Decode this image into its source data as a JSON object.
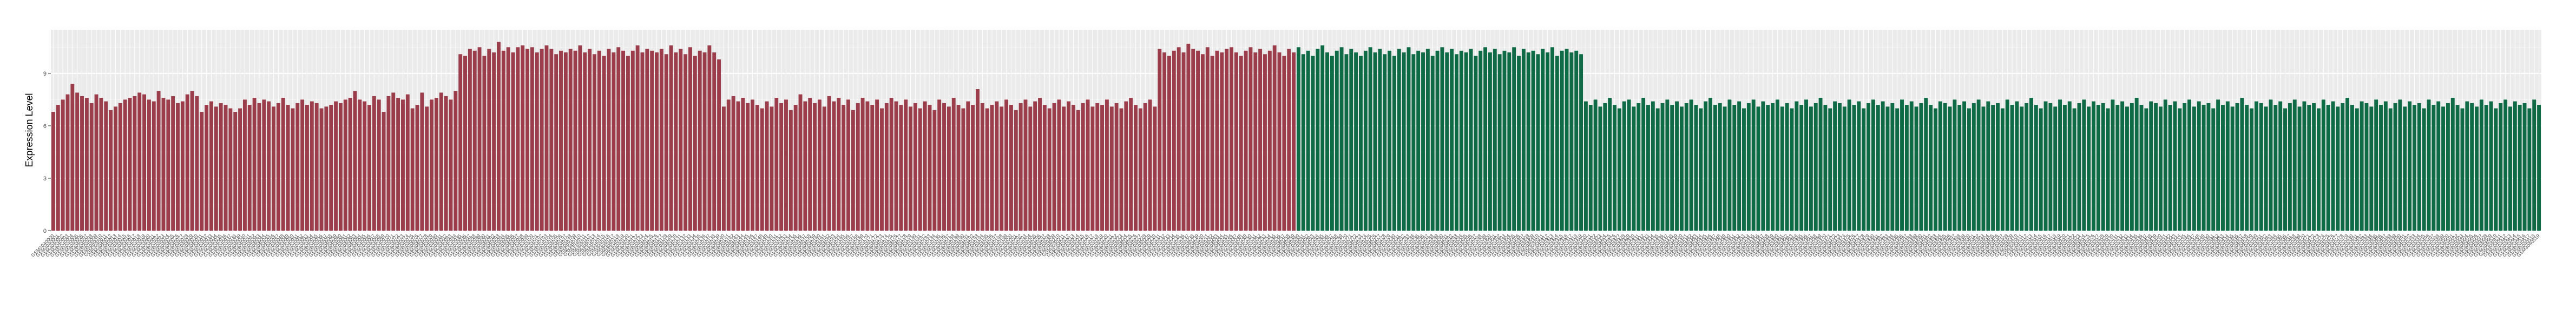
{
  "chart_data": {
    "type": "bar",
    "title": "",
    "xlabel": "",
    "ylabel": "Expression Level",
    "ylim": [
      0,
      11.5
    ],
    "yticks": [
      0,
      3,
      6,
      9
    ],
    "ytick_labels": [
      "0",
      "3",
      "6",
      "9"
    ],
    "grid": true,
    "legend": "none",
    "colors": {
      "group_a": "#9c3d4b",
      "group_b": "#0e6b45",
      "panel": "#ebebeb",
      "grid": "#ffffff"
    },
    "categories": [
      "GSM3040000",
      "GSM3040001",
      "GSM3040002",
      "GSM3040003",
      "GSM3040004",
      "GSM3040005",
      "GSM3040006",
      "GSM3040007",
      "GSM3040008",
      "GSM3040009",
      "GSM3040010",
      "GSM3040011",
      "GSM3040012",
      "GSM3040013",
      "GSM3040014",
      "GSM3040015",
      "GSM3040016",
      "GSM3040017",
      "GSM3040018",
      "GSM3040019",
      "GSM3040020",
      "GSM3040021",
      "GSM3040022",
      "GSM3040023",
      "GSM3040024",
      "GSM3040025",
      "GSM3040026",
      "GSM3040027",
      "GSM3040028",
      "GSM3040029",
      "GSM3040030",
      "GSM3040031",
      "GSM3040032",
      "GSM3040033",
      "GSM3040034",
      "GSM3040035",
      "GSM3040036",
      "GSM3040037",
      "GSM3040038",
      "GSM3040039",
      "GSM3040040",
      "GSM3040041",
      "GSM3040042",
      "GSM3040043",
      "GSM3040044",
      "GSM3040045",
      "GSM3040046",
      "GSM3040047",
      "GSM3040048",
      "GSM3040049",
      "GSM3040050",
      "GSM3040051",
      "GSM3040052",
      "GSM3040053",
      "GSM3040054",
      "GSM3040055",
      "GSM3040056",
      "GSM3040057",
      "GSM3040058",
      "GSM3040059",
      "GSM3040060",
      "GSM3040061",
      "GSM3040062",
      "GSM3040063",
      "GSM3040064",
      "GSM3040065",
      "GSM3040066",
      "GSM3040067",
      "GSM3040068",
      "GSM3040069",
      "GSM3040070",
      "GSM3040071",
      "GSM3040072",
      "GSM3040073",
      "GSM3040074",
      "GSM3040075",
      "GSM3040076",
      "GSM3040077",
      "GSM3040078",
      "GSM3040079",
      "GSM3040080",
      "GSM3040081",
      "GSM3040082",
      "GSM3040083",
      "GSM3040084",
      "GSM3040085",
      "GSM3040086",
      "GSM3040087",
      "GSM3040088",
      "GSM3040089",
      "GSM3040090",
      "GSM3040091",
      "GSM3040092",
      "GSM3040093",
      "GSM3040094",
      "GSM3040095",
      "GSM3040096",
      "GSM3040097",
      "GSM3040098",
      "GSM3040099",
      "GSM3040100",
      "GSM3040101",
      "GSM3040102",
      "GSM3040103",
      "GSM3040104",
      "GSM3040105",
      "GSM3040106",
      "GSM3040107",
      "GSM3040108",
      "GSM3040109",
      "GSM3040110",
      "GSM3040111",
      "GSM3040112",
      "GSM3040113",
      "GSM3040114",
      "GSM3040115",
      "GSM3040116",
      "GSM3040117",
      "GSM3040118",
      "GSM3040119",
      "GSM3040120",
      "GSM3040121",
      "GSM3040122",
      "GSM3040123",
      "GSM3040124",
      "GSM3040125",
      "GSM3040126",
      "GSM3040127",
      "GSM3040128",
      "GSM3040129",
      "GSM3040130",
      "GSM3040131",
      "GSM3040132",
      "GSM3040133",
      "GSM3040134",
      "GSM3040135",
      "GSM3040136",
      "GSM3040137",
      "GSM3040138",
      "GSM3040139",
      "GSM3040140",
      "GSM3040141",
      "GSM3040142",
      "GSM3040143",
      "GSM3040144",
      "GSM3040145",
      "GSM3040146",
      "GSM3040147",
      "GSM3040148",
      "GSM3040149",
      "GSM3040150",
      "GSM3040151",
      "GSM3040152",
      "GSM3040153",
      "GSM3040154",
      "GSM3040155",
      "GSM3040156",
      "GSM3040157",
      "GSM3040158",
      "GSM3040159",
      "GSM3040160",
      "GSM3040161",
      "GSM3040162",
      "GSM3040163",
      "GSM3040164",
      "GSM3040165",
      "GSM3040166",
      "GSM3040167",
      "GSM3040168",
      "GSM3040169",
      "GSM3040170",
      "GSM3040171",
      "GSM3040172",
      "GSM3040173",
      "GSM3040174",
      "GSM3040175",
      "GSM3040176",
      "GSM3040177",
      "GSM3040178",
      "GSM3040179",
      "GSM3040180",
      "GSM3040181",
      "GSM3040182",
      "GSM3040183",
      "GSM3040184",
      "GSM3040185",
      "GSM3040186",
      "GSM3040187",
      "GSM3040188",
      "GSM3040189",
      "GSM3040190",
      "GSM3040191",
      "GSM3040192",
      "GSM3040193",
      "GSM3040194",
      "GSM3040195",
      "GSM3040196",
      "GSM3040197",
      "GSM3040198",
      "GSM3040199",
      "GSM3040200",
      "GSM3040201",
      "GSM3040202",
      "GSM3040203",
      "GSM3040204",
      "GSM3040205",
      "GSM3040206",
      "GSM3040207",
      "GSM3040208",
      "GSM3040209",
      "GSM3040210",
      "GSM3040211",
      "GSM3040212",
      "GSM3040213",
      "GSM3040214",
      "GSM3040215",
      "GSM3040216",
      "GSM3040217",
      "GSM3040218",
      "GSM3040219",
      "GSM3040220",
      "GSM3040221",
      "GSM3040222",
      "GSM3040223",
      "GSM3040224",
      "GSM3040225",
      "GSM3040226",
      "GSM3040227",
      "GSM3040228",
      "GSM3040229",
      "GSM3040230",
      "GSM3040231",
      "GSM3040232",
      "GSM3040233",
      "GSM3040234",
      "GSM3040235",
      "GSM3040236",
      "GSM3040237",
      "GSM3040238",
      "GSM3040239",
      "GSM3040240",
      "GSM3040241",
      "GSM3040242",
      "GSM3040243",
      "GSM3040244",
      "GSM3040245",
      "GSM3040246",
      "GSM3040247",
      "GSM3040248",
      "GSM3040249",
      "GSM3040250",
      "GSM3040251",
      "GSM3040252",
      "GSM3040253",
      "GSM3040254",
      "GSM3040255",
      "GSM3040256",
      "GSM3040257",
      "GSM3040258",
      "GSM3040259",
      "GSM3040260",
      "GSM3040261",
      "GSM3040262",
      "GSM3040263",
      "GSM3040264",
      "GSM3040265",
      "GSM3040266",
      "GSM3040267",
      "GSM3040268",
      "GSM3040269",
      "GSM3040270",
      "GSM3040271",
      "GSM3040272",
      "GSM3040273",
      "GSM3040274",
      "GSM3040275",
      "GSM3040276",
      "GSM3040277",
      "GSM3040278",
      "GSM3040279",
      "GSM3040280",
      "GSM3040281",
      "GSM3040282",
      "GSM3040283",
      "GSM3040284",
      "GSM3040285",
      "GSM3040286",
      "GSM3040287",
      "GSM3040288",
      "GSM3040289",
      "GSM3040290",
      "GSM3040291",
      "GSM3040292",
      "GSM3040293",
      "GSM3040294",
      "GSM3040295",
      "GSM3040296",
      "GSM3040297",
      "GSM3040298",
      "GSM3040299",
      "GSM3040300",
      "GSM3040301",
      "GSM3040302",
      "GSM3040303",
      "GSM3040304",
      "GSM3040305",
      "GSM3040306",
      "GSM3040307",
      "GSM3040308",
      "GSM3040309",
      "GSM3040310",
      "GSM3040311",
      "GSM3040312",
      "GSM3040313",
      "GSM3040314",
      "GSM3040315",
      "GSM3040316",
      "GSM3040317",
      "GSM3040318",
      "GSM3040319",
      "GSM3040320",
      "GSM3040321",
      "GSM3040322",
      "GSM3040323",
      "GSM3040324",
      "GSM3040325",
      "GSM3040326",
      "GSM3040327",
      "GSM3040328",
      "GSM3040329",
      "GSM3040330",
      "GSM3040331",
      "GSM3040332",
      "GSM3040333",
      "GSM3040334",
      "GSM3040335",
      "GSM3040336",
      "GSM3040337",
      "GSM3040338",
      "GSM3040339",
      "GSM3040340",
      "GSM3040341",
      "GSM3040342",
      "GSM3040343",
      "GSM3040344",
      "GSM3040345",
      "GSM3040346",
      "GSM3040347",
      "GSM3040348",
      "GSM3040349",
      "GSM3040350",
      "GSM3040351",
      "GSM3040352",
      "GSM3040353",
      "GSM3040354",
      "GSM3040355",
      "GSM3040356",
      "GSM3040357",
      "GSM3040358",
      "GSM3040359",
      "GSM3040360",
      "GSM3040361",
      "GSM3040362",
      "GSM3040363",
      "GSM3040364",
      "GSM3040365",
      "GSM3040366",
      "GSM3040367",
      "GSM3040368",
      "GSM3040369",
      "GSM3040370",
      "GSM3040371",
      "GSM3040372",
      "GSM3040373",
      "GSM3040374",
      "GSM3040375",
      "GSM3040376",
      "GSM3040377",
      "GSM3040378",
      "GSM3040379",
      "GSM3040380",
      "GSM3040381",
      "GSM3040382",
      "GSM3040383",
      "GSM3040384",
      "GSM3040385",
      "GSM3040386",
      "GSM3040387",
      "GSM3040388",
      "GSM3040389",
      "GSM3040390",
      "GSM3040391",
      "GSM3040392",
      "GSM3040393",
      "GSM3040394",
      "GSM3040395",
      "GSM3040396",
      "GSM3040397",
      "GSM3040398",
      "GSM3040399",
      "GSM3040400",
      "GSM3040401",
      "GSM3040402",
      "GSM3040403",
      "GSM3040404",
      "GSM3040405",
      "GSM3040406",
      "GSM3040407",
      "GSM3040408",
      "GSM3040409",
      "GSM3040410",
      "GSM3040411",
      "GSM3040412",
      "GSM3040413",
      "GSM3040414",
      "GSM3040415",
      "GSM3040416",
      "GSM3040417",
      "GSM3040418",
      "GSM3040419",
      "GSM3040420",
      "GSM3040421",
      "GSM3040422",
      "GSM3040423",
      "GSM3040424",
      "GSM3040425",
      "GSM3040426",
      "GSM3040427",
      "GSM3040428",
      "GSM3040429",
      "GSM3040430",
      "GSM3040431",
      "GSM3040432",
      "GSM3040433",
      "GSM3040434",
      "GSM3040435",
      "GSM3040436",
      "GSM3040437",
      "GSM3040438",
      "GSM3040439",
      "GSM3040440",
      "GSM3040441",
      "GSM3040442",
      "GSM3040443",
      "GSM3040444",
      "GSM3040445",
      "GSM3040446",
      "GSM3040447",
      "GSM3040448",
      "GSM3040449",
      "GSM3040450",
      "GSM3040451",
      "GSM3040452",
      "GSM3040453",
      "GSM3040454",
      "GSM3040455",
      "GSM3040456",
      "GSM3040457",
      "GSM3040458",
      "GSM3040459",
      "GSM3040460",
      "GSM3040461",
      "GSM3040462",
      "GSM3040463",
      "GSM3040464",
      "GSM3040465",
      "GSM3040466",
      "GSM3040467",
      "GSM3040468",
      "GSM3040469",
      "GSM3040470",
      "GSM3040471",
      "GSM3040472",
      "GSM3040473",
      "GSM3040474",
      "GSM3040475",
      "GSM3040476",
      "GSM3040477",
      "GSM3040478",
      "GSM3040479",
      "GSM3040480",
      "GSM3040481",
      "GSM3040482",
      "GSM3040483",
      "GSM3040484",
      "GSM3040485",
      "GSM3040486",
      "GSM3040487",
      "GSM3040488",
      "GSM3040489",
      "GSM3040490",
      "GSM3040491",
      "GSM3040492",
      "GSM3040493",
      "GSM3040494",
      "GSM3040495",
      "GSM3040496",
      "GSM3040497",
      "GSM3040498",
      "GSM3040499",
      "GSM3040500",
      "GSM3040501",
      "GSM3040502",
      "GSM3040503",
      "GSM3040504",
      "GSM3040505",
      "GSM3040506",
      "GSM3040507",
      "GSM3040508",
      "GSM3040509",
      "GSM3040510",
      "GSM3040511",
      "GSM3040512",
      "GSM3040513",
      "GSM3040514",
      "GSM3040515",
      "GSM3040516",
      "GSM3040517",
      "GSM3040518",
      "GSM3040519"
    ],
    "values": [
      6.8,
      7.2,
      7.5,
      7.8,
      8.4,
      7.9,
      7.7,
      7.6,
      7.3,
      7.8,
      7.6,
      7.4,
      6.9,
      7.1,
      7.3,
      7.5,
      7.6,
      7.7,
      7.9,
      7.8,
      7.5,
      7.4,
      8.0,
      7.6,
      7.5,
      7.7,
      7.3,
      7.4,
      7.8,
      8.0,
      7.7,
      6.8,
      7.2,
      7.4,
      7.1,
      7.3,
      7.2,
      7.0,
      6.8,
      7.0,
      7.5,
      7.2,
      7.6,
      7.3,
      7.5,
      7.4,
      7.1,
      7.3,
      7.6,
      7.2,
      7.0,
      7.3,
      7.5,
      7.2,
      7.4,
      7.3,
      7.0,
      7.1,
      7.2,
      7.4,
      7.3,
      7.5,
      7.6,
      8.0,
      7.5,
      7.4,
      7.2,
      7.7,
      7.5,
      6.8,
      7.7,
      7.9,
      7.6,
      7.5,
      7.8,
      7.0,
      7.2,
      7.9,
      7.1,
      7.5,
      7.6,
      7.9,
      7.7,
      7.5,
      8.0,
      10.1,
      10.0,
      10.4,
      10.3,
      10.5,
      10.0,
      10.4,
      10.2,
      10.8,
      10.3,
      10.5,
      10.2,
      10.5,
      10.6,
      10.4,
      10.5,
      10.2,
      10.4,
      10.6,
      10.4,
      10.1,
      10.3,
      10.2,
      10.4,
      10.3,
      10.6,
      10.2,
      10.4,
      10.1,
      10.3,
      10.0,
      10.4,
      10.2,
      10.5,
      10.3,
      10.0,
      10.3,
      10.6,
      10.2,
      10.4,
      10.3,
      10.2,
      10.4,
      10.1,
      10.6,
      10.2,
      10.4,
      10.1,
      10.5,
      10.0,
      10.3,
      10.2,
      10.6,
      10.2,
      9.8,
      7.1,
      7.5,
      7.7,
      7.4,
      7.6,
      7.3,
      7.5,
      7.2,
      7.0,
      7.4,
      7.1,
      7.6,
      7.3,
      7.5,
      6.9,
      7.2,
      7.8,
      7.4,
      7.6,
      7.3,
      7.5,
      7.1,
      7.7,
      7.4,
      7.6,
      7.2,
      7.5,
      6.9,
      7.3,
      7.6,
      7.4,
      7.2,
      7.5,
      7.0,
      7.3,
      7.6,
      7.4,
      7.2,
      7.5,
      7.1,
      7.3,
      7.0,
      7.4,
      7.2,
      6.9,
      7.5,
      7.3,
      7.1,
      7.6,
      7.2,
      7.0,
      7.4,
      7.2,
      8.1,
      7.3,
      7.0,
      7.2,
      7.4,
      7.1,
      7.5,
      7.2,
      6.9,
      7.3,
      7.5,
      7.1,
      7.4,
      7.6,
      7.2,
      7.0,
      7.3,
      7.5,
      7.1,
      7.4,
      7.2,
      6.9,
      7.3,
      7.5,
      7.1,
      7.3,
      7.2,
      7.5,
      7.1,
      7.3,
      7.0,
      7.4,
      7.6,
      7.2,
      7.0,
      7.3,
      7.5,
      7.1,
      10.4,
      10.2,
      10.0,
      10.3,
      10.5,
      10.2,
      10.7,
      10.4,
      10.3,
      10.1,
      10.5,
      10.0,
      10.3,
      10.2,
      10.4,
      10.5,
      10.2,
      10.0,
      10.3,
      10.5,
      10.2,
      10.4,
      10.1,
      10.3,
      10.6,
      10.2,
      10.0,
      10.4,
      10.2,
      10.5,
      10.1,
      10.3,
      10.0,
      10.4,
      10.6,
      10.2,
      10.0,
      10.3,
      10.5,
      10.1,
      10.4,
      10.2,
      10.0,
      10.3,
      10.5,
      10.2,
      10.4,
      10.1,
      10.3,
      10.0,
      10.4,
      10.2,
      10.5,
      10.1,
      10.3,
      10.2,
      10.4,
      10.0,
      10.3,
      10.5,
      10.2,
      10.4,
      10.1,
      10.3,
      10.2,
      10.4,
      10.0,
      10.3,
      10.5,
      10.2,
      10.4,
      10.1,
      10.3,
      10.2,
      10.5,
      10.0,
      10.4,
      10.2,
      10.3,
      10.1,
      10.4,
      10.2,
      10.5,
      10.0,
      10.3,
      10.4,
      10.2,
      10.3,
      10.1,
      7.4,
      7.2,
      7.5,
      7.1,
      7.3,
      7.6,
      7.2,
      7.0,
      7.4,
      7.5,
      7.1,
      7.3,
      7.6,
      7.2,
      7.4,
      7.0,
      7.3,
      7.5,
      7.2,
      7.4,
      7.1,
      7.3,
      7.5,
      7.2,
      7.0,
      7.4,
      7.6,
      7.2,
      7.3,
      7.1,
      7.5,
      7.2,
      7.4,
      7.0,
      7.3,
      7.5,
      7.1,
      7.4,
      7.2,
      7.3,
      7.5,
      7.1,
      7.3,
      7.0,
      7.4,
      7.2,
      7.5,
      7.1,
      7.3,
      7.6,
      7.2,
      7.0,
      7.4,
      7.3,
      7.1,
      7.5,
      7.2,
      7.4,
      7.0,
      7.3,
      7.5,
      7.2,
      7.4,
      7.1,
      7.3,
      7.0,
      7.5,
      7.2,
      7.4,
      7.1,
      7.3,
      7.6,
      7.2,
      7.0,
      7.4,
      7.3,
      7.1,
      7.5,
      7.2,
      7.4,
      7.0,
      7.3,
      7.5,
      7.1,
      7.4,
      7.2,
      7.3,
      7.0,
      7.5,
      7.2,
      7.4,
      7.1,
      7.3,
      7.6,
      7.2,
      7.0,
      7.4,
      7.3,
      7.1,
      7.5,
      7.2,
      7.4,
      7.0,
      7.3,
      7.5,
      7.1,
      7.4,
      7.2,
      7.3,
      7.0,
      7.5,
      7.2,
      7.4,
      7.1,
      7.3,
      7.6,
      7.2,
      7.0,
      7.4,
      7.3,
      7.1,
      7.5,
      7.2,
      7.4,
      7.0,
      7.3,
      7.5,
      7.1,
      7.4,
      7.2,
      7.3,
      7.0,
      7.5,
      7.2,
      7.4,
      7.1,
      7.3,
      7.6,
      7.2,
      7.0,
      7.4,
      7.3,
      7.1,
      7.5,
      7.2,
      7.4,
      7.0,
      7.3,
      7.5,
      7.1,
      7.4,
      7.2,
      7.3,
      7.0,
      7.5,
      7.2,
      7.4,
      7.1,
      7.3,
      7.6,
      7.2,
      7.0,
      7.4,
      7.3,
      7.1,
      7.5,
      7.2,
      7.4,
      7.0,
      7.3,
      7.5,
      7.1,
      7.4,
      7.2,
      7.3,
      7.0,
      7.5,
      7.2,
      7.4,
      7.1,
      7.3,
      7.6,
      7.2,
      7.0,
      7.4,
      7.3,
      7.1,
      7.5,
      7.2,
      7.4,
      7.0,
      7.3,
      7.5,
      7.1,
      7.4,
      7.2,
      7.3,
      7.0,
      7.5,
      7.2
    ],
    "group_split_index": 260
  }
}
